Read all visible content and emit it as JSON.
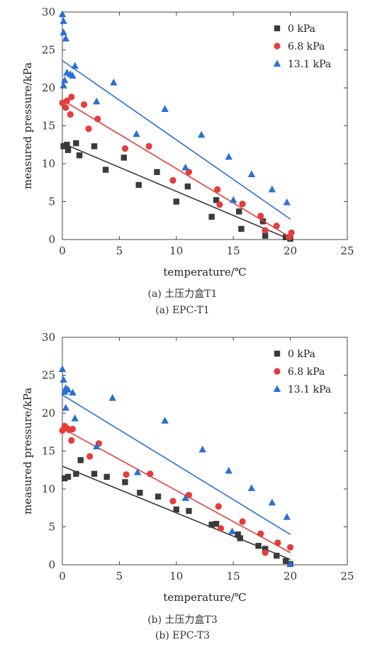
{
  "colors": {
    "series0": "#3a3a3a",
    "series1": "#e53c3c",
    "series2": "#2a6fd6"
  },
  "chart_data": [
    {
      "type": "scatter",
      "xlabel": "temperature/℃",
      "ylabel": "measured pressure/kPa",
      "xlim": [
        0,
        25
      ],
      "ylim": [
        0,
        30
      ],
      "xticks": [
        "0",
        "5",
        "10",
        "15",
        "20",
        "25"
      ],
      "yticks": [
        "0",
        "5",
        "10",
        "15",
        "20",
        "25",
        "30"
      ],
      "legend_position": "top-right",
      "caption_cn": "(a) 土压力盒T1",
      "caption_en": "(a) EPC-T1",
      "series": [
        {
          "name": "0 kPa",
          "marker": "square",
          "color": "#3a3a3a",
          "points": [
            [
              0.1,
              12.3
            ],
            [
              0.4,
              12.5
            ],
            [
              0.5,
              11.8
            ],
            [
              1.2,
              12.7
            ],
            [
              1.5,
              11.1
            ],
            [
              2.8,
              12.3
            ],
            [
              3.8,
              9.2
            ],
            [
              5.4,
              10.8
            ],
            [
              6.7,
              7.2
            ],
            [
              8.3,
              8.9
            ],
            [
              10.0,
              5.0
            ],
            [
              11.0,
              7.0
            ],
            [
              13.1,
              3.0
            ],
            [
              13.5,
              5.2
            ],
            [
              15.5,
              3.7
            ],
            [
              15.7,
              1.4
            ],
            [
              17.6,
              2.4
            ],
            [
              17.8,
              0.5
            ],
            [
              19.6,
              0.3
            ],
            [
              20.0,
              0.1
            ]
          ],
          "fit": [
            [
              0,
              12.7
            ],
            [
              20,
              0.0
            ]
          ]
        },
        {
          "name": "6.8 kPa",
          "marker": "circle",
          "color": "#e53c3c",
          "points": [
            [
              0,
              18.0
            ],
            [
              0.3,
              17.4
            ],
            [
              0.4,
              18.3
            ],
            [
              0.7,
              16.5
            ],
            [
              0.8,
              18.8
            ],
            [
              1.9,
              17.8
            ],
            [
              2.3,
              14.6
            ],
            [
              3.1,
              15.9
            ],
            [
              5.5,
              12.0
            ],
            [
              7.6,
              12.3
            ],
            [
              9.7,
              7.8
            ],
            [
              11.1,
              8.9
            ],
            [
              13.6,
              6.6
            ],
            [
              13.8,
              4.6
            ],
            [
              15.8,
              4.7
            ],
            [
              17.4,
              3.1
            ],
            [
              17.8,
              1.2
            ],
            [
              18.8,
              1.8
            ],
            [
              19.9,
              0.3
            ],
            [
              20.1,
              0.9
            ]
          ],
          "fit": [
            [
              0,
              18.4
            ],
            [
              20,
              0.3
            ]
          ]
        },
        {
          "name": "13.1 kPa",
          "marker": "triangle",
          "color": "#2a6fd6",
          "points": [
            [
              0,
              29.7
            ],
            [
              0.1,
              28.8
            ],
            [
              0.1,
              27.3
            ],
            [
              0.3,
              26.5
            ],
            [
              0.1,
              20.3
            ],
            [
              0.2,
              21.0
            ],
            [
              0.4,
              22.0
            ],
            [
              0.7,
              21.8
            ],
            [
              0.9,
              21.6
            ],
            [
              1.1,
              22.9
            ],
            [
              3.0,
              18.2
            ],
            [
              4.5,
              20.7
            ],
            [
              6.5,
              13.9
            ],
            [
              9.0,
              17.2
            ],
            [
              10.8,
              9.5
            ],
            [
              12.2,
              13.8
            ],
            [
              14.6,
              10.9
            ],
            [
              15.0,
              5.2
            ],
            [
              16.6,
              8.6
            ],
            [
              18.4,
              6.6
            ],
            [
              19.7,
              4.9
            ]
          ],
          "fit": [
            [
              0,
              23.6
            ],
            [
              20,
              2.7
            ]
          ]
        }
      ]
    },
    {
      "type": "scatter",
      "xlabel": "temperature/℃",
      "ylabel": "measured pressure/kPa",
      "xlim": [
        0,
        25
      ],
      "ylim": [
        0,
        30
      ],
      "xticks": [
        "0",
        "5",
        "10",
        "15",
        "20",
        "25"
      ],
      "yticks": [
        "0",
        "5",
        "10",
        "15",
        "20",
        "25",
        "30"
      ],
      "legend_position": "top-right",
      "caption_cn": "(b) 土压力盒T3",
      "caption_en": "(b) EPC-T3",
      "series": [
        {
          "name": "0 kPa",
          "marker": "square",
          "color": "#3a3a3a",
          "points": [
            [
              0.2,
              11.4
            ],
            [
              0.5,
              11.6
            ],
            [
              1.2,
              12.0
            ],
            [
              1.6,
              13.8
            ],
            [
              2.8,
              12.0
            ],
            [
              3.9,
              11.6
            ],
            [
              5.5,
              10.9
            ],
            [
              6.8,
              9.5
            ],
            [
              8.4,
              9.0
            ],
            [
              10.0,
              7.3
            ],
            [
              11.1,
              7.1
            ],
            [
              13.1,
              5.3
            ],
            [
              13.5,
              5.4
            ],
            [
              15.4,
              4.0
            ],
            [
              15.6,
              3.5
            ],
            [
              17.2,
              2.5
            ],
            [
              17.8,
              2.1
            ],
            [
              18.8,
              1.2
            ],
            [
              19.6,
              0.5
            ],
            [
              20.0,
              0.1
            ]
          ],
          "fit": [
            [
              0,
              13.0
            ],
            [
              20,
              0.7
            ]
          ]
        },
        {
          "name": "6.8 kPa",
          "marker": "circle",
          "color": "#e53c3c",
          "points": [
            [
              0,
              17.7
            ],
            [
              0.2,
              18.3
            ],
            [
              0.4,
              18.0
            ],
            [
              0.6,
              17.8
            ],
            [
              0.8,
              16.4
            ],
            [
              0.9,
              17.9
            ],
            [
              2.4,
              14.3
            ],
            [
              3.2,
              16.0
            ],
            [
              5.6,
              11.9
            ],
            [
              7.7,
              12.0
            ],
            [
              9.7,
              8.4
            ],
            [
              11.1,
              9.2
            ],
            [
              13.7,
              7.7
            ],
            [
              13.9,
              4.8
            ],
            [
              15.8,
              5.7
            ],
            [
              17.4,
              4.1
            ],
            [
              17.8,
              1.6
            ],
            [
              18.9,
              2.9
            ],
            [
              20.0,
              2.3
            ]
          ],
          "fit": [
            [
              0,
              18.0
            ],
            [
              20,
              1.6
            ]
          ]
        },
        {
          "name": "13.1 kPa",
          "marker": "triangle",
          "color": "#2a6fd6",
          "points": [
            [
              0,
              25.8
            ],
            [
              0.1,
              24.4
            ],
            [
              0.2,
              22.8
            ],
            [
              0.3,
              20.7
            ],
            [
              0.3,
              23.3
            ],
            [
              0.5,
              23.1
            ],
            [
              0.9,
              22.7
            ],
            [
              1.1,
              19.3
            ],
            [
              3.0,
              15.6
            ],
            [
              4.4,
              22.0
            ],
            [
              6.6,
              12.2
            ],
            [
              9.0,
              19.0
            ],
            [
              10.8,
              8.8
            ],
            [
              12.3,
              15.2
            ],
            [
              14.6,
              12.4
            ],
            [
              14.9,
              4.4
            ],
            [
              16.6,
              10.1
            ],
            [
              18.4,
              8.2
            ],
            [
              19.7,
              6.3
            ],
            [
              20.0,
              0.1
            ]
          ],
          "fit": [
            [
              0,
              22.4
            ],
            [
              20,
              4.0
            ]
          ]
        }
      ]
    }
  ]
}
